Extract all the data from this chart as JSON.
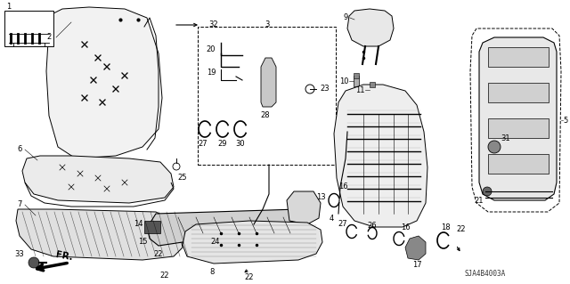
{
  "bg_color": "#ffffff",
  "line_color": "#000000",
  "fig_width": 6.4,
  "fig_height": 3.19,
  "watermark": "SJA4B4003A"
}
